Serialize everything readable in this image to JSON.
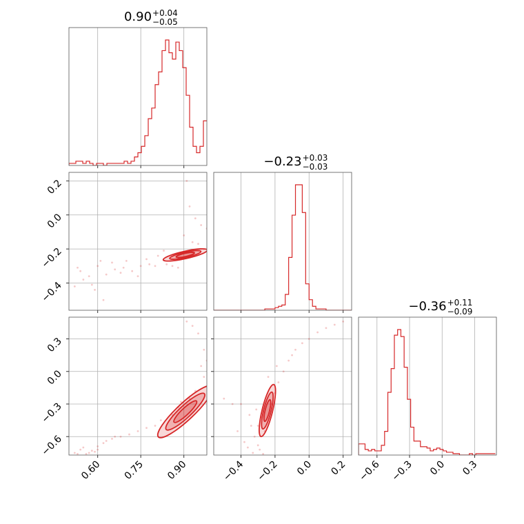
{
  "chart_data": {
    "type": "corner",
    "color": "#d62728",
    "parameters": [
      {
        "range": [
          0.5,
          0.98
        ],
        "ticks": [
          0.6,
          0.75,
          0.9
        ],
        "tick_labels": [
          "0.60",
          "0.75",
          "0.90"
        ],
        "title": {
          "median": "0.90",
          "plus": "+0.04",
          "minus": "−0.05"
        },
        "histogram": {
          "edges_start": 0.5,
          "bin_width": 0.012,
          "counts": [
            1,
            1,
            2,
            2,
            1,
            2,
            1,
            0,
            1,
            1,
            0,
            1,
            1,
            1,
            1,
            1,
            2,
            1,
            2,
            4,
            6,
            9,
            14,
            22,
            27,
            38,
            44,
            54,
            59,
            53,
            50,
            58,
            54,
            46,
            33,
            18,
            9,
            6,
            9,
            21
          ]
        }
      },
      {
        "range": [
          -0.56,
          0.25
        ],
        "ticks": [
          -0.4,
          -0.2,
          0.0,
          0.2
        ],
        "tick_labels": [
          "−0.4",
          "−0.2",
          "0.0",
          "0.2"
        ],
        "title": {
          "median": "−0.23",
          "plus": "+0.03",
          "minus": "−0.03"
        },
        "histogram": {
          "edges_start": -0.56,
          "bin_width": 0.02,
          "counts": [
            0,
            0,
            0,
            0,
            0,
            0,
            0,
            0,
            0,
            0,
            0,
            0,
            0,
            0,
            0,
            1,
            1,
            1,
            2,
            3,
            4,
            12,
            40,
            72,
            95,
            95,
            74,
            20,
            8,
            3,
            1,
            1,
            1,
            0,
            0,
            0,
            0,
            0,
            0,
            0,
            0
          ]
        }
      },
      {
        "range": [
          -0.77,
          0.5
        ],
        "ticks": [
          -0.6,
          -0.3,
          0.0,
          0.3
        ],
        "tick_labels": [
          "−0.6",
          "−0.3",
          "0.0",
          "0.3"
        ],
        "title": {
          "median": "−0.36",
          "plus": "+0.11",
          "minus": "−0.09"
        },
        "histogram": {
          "edges_start": -0.77,
          "bin_width": 0.03,
          "counts": [
            8,
            8,
            4,
            3,
            4,
            3,
            3,
            7,
            17,
            45,
            62,
            86,
            90,
            85,
            63,
            40,
            20,
            10,
            10,
            6,
            6,
            5,
            3,
            4,
            5,
            4,
            3,
            2,
            2,
            1,
            1,
            0,
            0,
            0,
            1,
            0,
            1,
            1,
            1,
            1,
            1,
            1
          ]
        }
      }
    ],
    "pairs": [
      {
        "row": 1,
        "col": 0,
        "yticks": [
          -0.4,
          -0.2,
          0.0,
          0.2
        ],
        "ytick_labels": [
          "−0.4",
          "−0.2",
          "0.0",
          "0.2"
        ],
        "center": [
          0.905,
          -0.235
        ],
        "spread": [
          0.032,
          0.015
        ],
        "rho": 0.78,
        "scatter": [
          [
            0.54,
            -0.33
          ],
          [
            0.57,
            -0.36
          ],
          [
            0.6,
            -0.3
          ],
          [
            0.63,
            -0.35
          ],
          [
            0.66,
            -0.32
          ],
          [
            0.69,
            -0.31
          ],
          [
            0.72,
            -0.33
          ],
          [
            0.75,
            -0.3
          ],
          [
            0.78,
            -0.29
          ],
          [
            0.52,
            -0.42
          ],
          [
            0.55,
            -0.38
          ],
          [
            0.62,
            -0.5
          ],
          [
            0.65,
            -0.28
          ],
          [
            0.7,
            -0.27
          ],
          [
            0.74,
            -0.36
          ],
          [
            0.77,
            -0.26
          ],
          [
            0.81,
            -0.24
          ],
          [
            0.84,
            -0.29
          ],
          [
            0.86,
            -0.3
          ],
          [
            0.88,
            -0.31
          ],
          [
            0.9,
            -0.12
          ],
          [
            0.92,
            0.05
          ],
          [
            0.94,
            -0.02
          ],
          [
            0.96,
            -0.06
          ],
          [
            0.98,
            -0.08
          ],
          [
            0.95,
            -0.17
          ],
          [
            0.97,
            -0.2
          ],
          [
            0.59,
            -0.44
          ],
          [
            0.68,
            -0.34
          ],
          [
            0.8,
            -0.3
          ],
          [
            0.83,
            -0.21
          ],
          [
            0.93,
            -0.16
          ],
          [
            0.91,
            0.2
          ],
          [
            0.61,
            -0.27
          ],
          [
            0.53,
            -0.31
          ],
          [
            0.58,
            -0.41
          ]
        ]
      },
      {
        "row": 2,
        "col": 0,
        "yticks": [
          -0.6,
          -0.3,
          0.0,
          0.3
        ],
        "ytick_labels": [
          "−0.6",
          "−0.3",
          "0.0",
          "0.3"
        ],
        "center": [
          0.905,
          -0.37
        ],
        "spread": [
          0.04,
          0.1
        ],
        "rho": 0.9,
        "scatter": [
          [
            0.52,
            -0.75
          ],
          [
            0.54,
            -0.72
          ],
          [
            0.56,
            -0.76
          ],
          [
            0.58,
            -0.73
          ],
          [
            0.6,
            -0.69
          ],
          [
            0.62,
            -0.66
          ],
          [
            0.65,
            -0.62
          ],
          [
            0.68,
            -0.6
          ],
          [
            0.71,
            -0.58
          ],
          [
            0.74,
            -0.55
          ],
          [
            0.77,
            -0.52
          ],
          [
            0.8,
            -0.5
          ],
          [
            0.55,
            -0.7
          ],
          [
            0.59,
            -0.74
          ],
          [
            0.63,
            -0.64
          ],
          [
            0.82,
            -0.45
          ],
          [
            0.86,
            -0.4
          ],
          [
            0.88,
            -0.33
          ],
          [
            0.92,
            -0.25
          ],
          [
            0.94,
            -0.18
          ],
          [
            0.96,
            0.05
          ],
          [
            0.97,
            0.2
          ],
          [
            0.95,
            0.35
          ],
          [
            0.98,
            0.1
          ],
          [
            0.93,
            0.42
          ],
          [
            0.91,
            0.46
          ],
          [
            0.97,
            -0.05
          ],
          [
            0.66,
            -0.6
          ],
          [
            0.6,
            -0.72
          ],
          [
            0.53,
            -0.76
          ],
          [
            0.57,
            -0.75
          ],
          [
            0.89,
            -0.28
          ]
        ]
      },
      {
        "row": 2,
        "col": 1,
        "yticks": [
          -0.6,
          -0.3,
          0.0,
          0.3
        ],
        "ytick_labels": [
          "−0.6",
          "−0.3",
          "0.0",
          "0.3"
        ],
        "center": [
          -0.245,
          -0.36
        ],
        "spread": [
          0.02,
          0.1
        ],
        "rho": 0.75,
        "scatter": [
          [
            -0.3,
            -0.5
          ],
          [
            -0.28,
            -0.42
          ],
          [
            -0.26,
            -0.55
          ],
          [
            -0.22,
            -0.3
          ],
          [
            -0.2,
            -0.2
          ],
          [
            -0.18,
            -0.1
          ],
          [
            -0.15,
            0.0
          ],
          [
            -0.12,
            0.1
          ],
          [
            -0.08,
            0.2
          ],
          [
            -0.04,
            0.26
          ],
          [
            0.0,
            0.3
          ],
          [
            0.05,
            0.36
          ],
          [
            0.1,
            0.4
          ],
          [
            0.15,
            0.43
          ],
          [
            0.2,
            0.46
          ],
          [
            -0.35,
            -0.4
          ],
          [
            -0.4,
            -0.3
          ],
          [
            -0.38,
            -0.65
          ],
          [
            -0.32,
            -0.6
          ],
          [
            -0.3,
            -0.68
          ],
          [
            -0.27,
            -0.76
          ],
          [
            -0.29,
            -0.72
          ],
          [
            -0.34,
            -0.5
          ],
          [
            -0.45,
            -0.3
          ],
          [
            -0.5,
            -0.25
          ],
          [
            -0.42,
            -0.55
          ],
          [
            -0.24,
            -0.05
          ],
          [
            -0.19,
            0.05
          ],
          [
            -0.1,
            0.15
          ],
          [
            -0.33,
            -0.75
          ],
          [
            -0.36,
            -0.7
          ],
          [
            -0.31,
            -0.35
          ]
        ]
      }
    ]
  }
}
